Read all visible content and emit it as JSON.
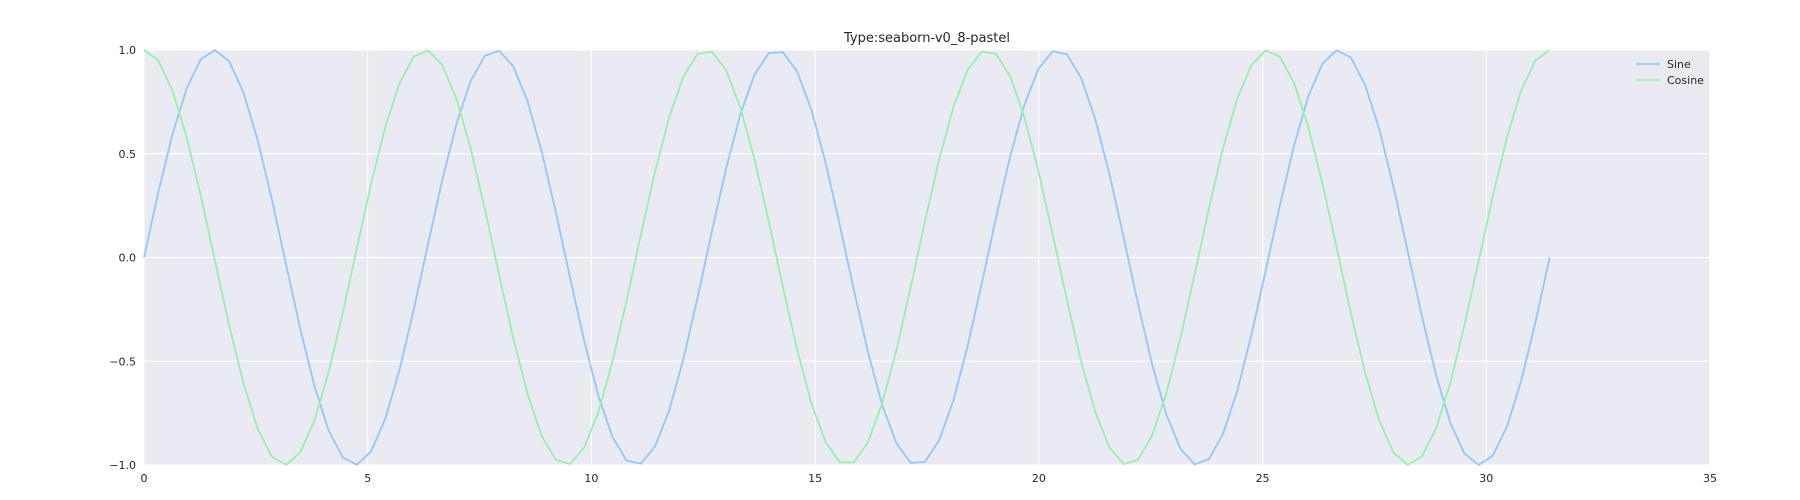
{
  "chart_data": {
    "type": "line",
    "title": "Type:seaborn-v0_8-pastel",
    "xlabel": "",
    "ylabel": "",
    "xlim": [
      0,
      35
    ],
    "ylim": [
      -1.0,
      1.0
    ],
    "x_ticks": [
      0,
      5,
      10,
      15,
      20,
      25,
      30,
      35
    ],
    "x_tick_labels": [
      "0",
      "5",
      "10",
      "15",
      "20",
      "25",
      "30",
      "35"
    ],
    "y_ticks": [
      -1.0,
      -0.5,
      0.0,
      0.5,
      1.0
    ],
    "y_tick_labels": [
      "−1.0",
      "−0.5",
      "0.0",
      "0.5",
      "1.0"
    ],
    "grid": true,
    "background": "#eaeaf2",
    "legend_position": "top-right",
    "x_range": [
      0,
      31.4159
    ],
    "num_points": 100,
    "series": [
      {
        "name": "Sine",
        "function": "sin",
        "color": "#92c6ff"
      },
      {
        "name": "Cosine",
        "function": "cos",
        "color": "#97f0aa"
      }
    ]
  }
}
